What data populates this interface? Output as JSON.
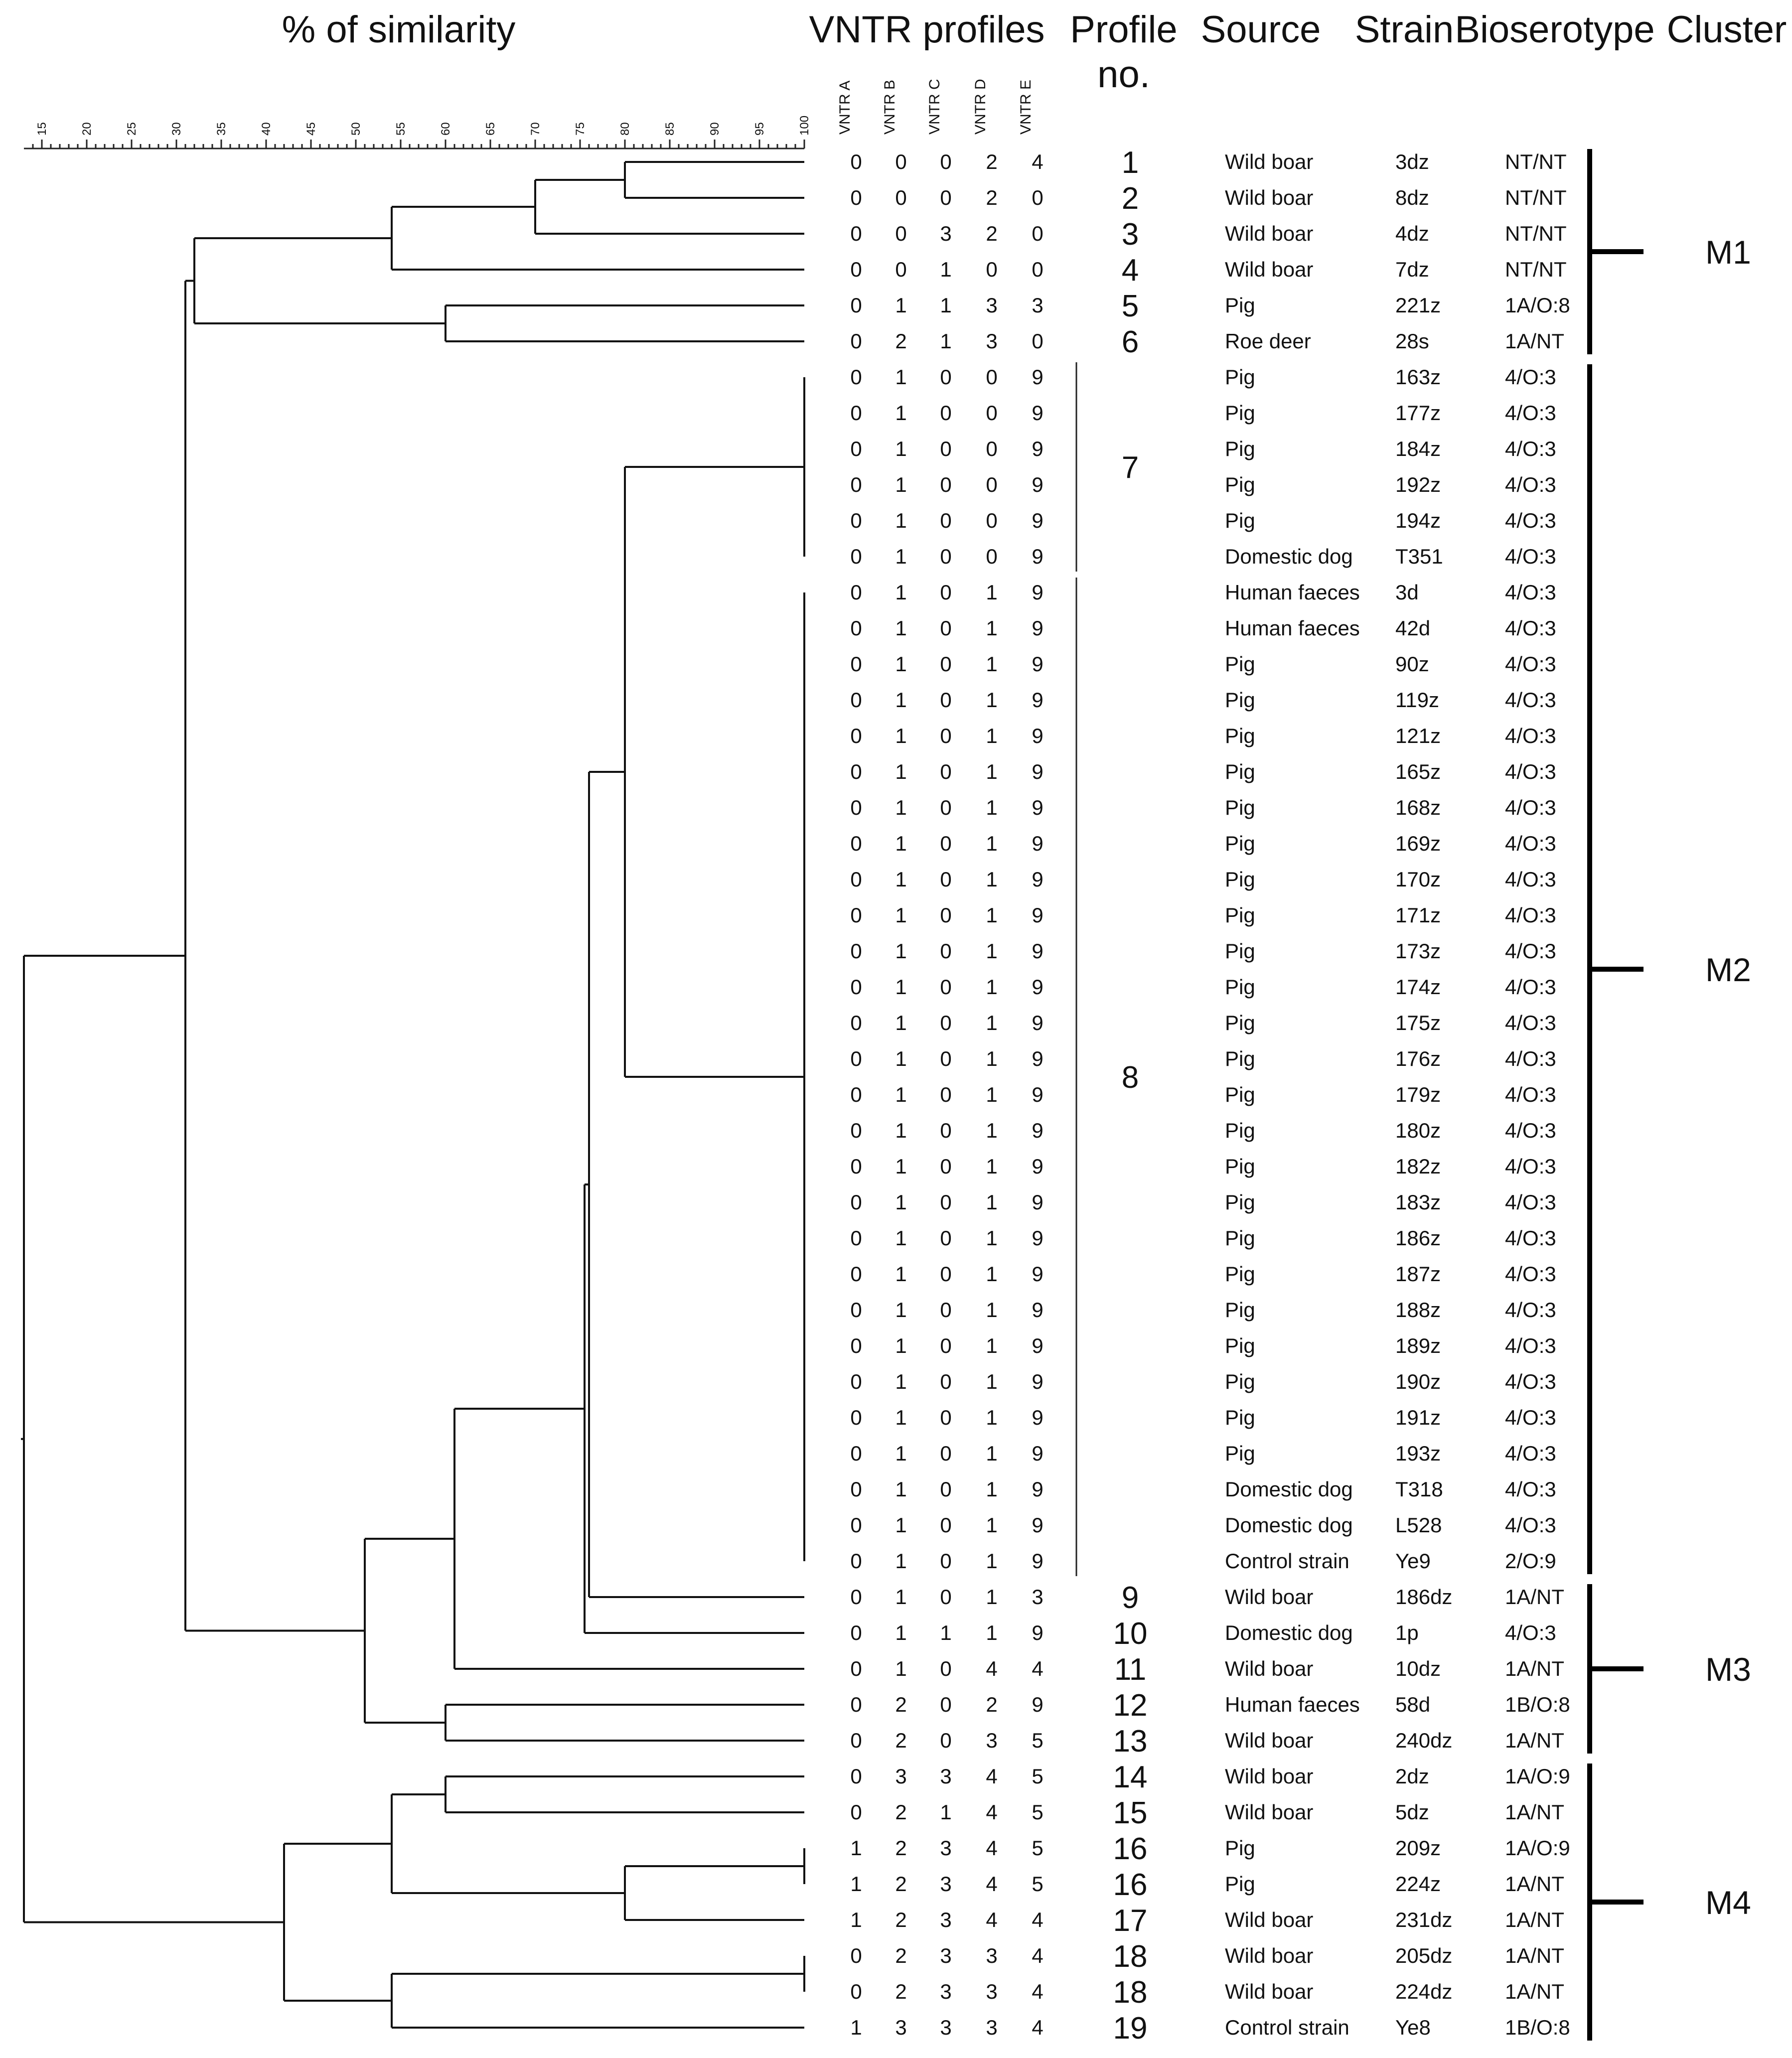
{
  "headers": {
    "similarity": "% of similarity",
    "vntr": "VNTR profiles",
    "profile": "Profile",
    "profile_no": "no.",
    "source": "Source",
    "strain": "Strain",
    "bioserotype": "Bioserotype",
    "cluster": "Cluster"
  },
  "vntr_columns": [
    "VNTR A",
    "VNTR B",
    "VNTR C",
    "VNTR D",
    "VNTR E"
  ],
  "scale_ticks": [
    "15",
    "20",
    "25",
    "30",
    "35",
    "40",
    "45",
    "50",
    "55",
    "60",
    "65",
    "70",
    "75",
    "80",
    "85",
    "90",
    "95",
    "100"
  ],
  "rows": [
    {
      "vntr": [
        "0",
        "0",
        "0",
        "2",
        "4"
      ],
      "source": "Wild boar",
      "strain": "3dz",
      "bioserotype": "NT/NT"
    },
    {
      "vntr": [
        "0",
        "0",
        "0",
        "2",
        "0"
      ],
      "source": "Wild boar",
      "strain": "8dz",
      "bioserotype": "NT/NT"
    },
    {
      "vntr": [
        "0",
        "0",
        "3",
        "2",
        "0"
      ],
      "source": "Wild boar",
      "strain": "4dz",
      "bioserotype": "NT/NT"
    },
    {
      "vntr": [
        "0",
        "0",
        "1",
        "0",
        "0"
      ],
      "source": "Wild boar",
      "strain": "7dz",
      "bioserotype": "NT/NT"
    },
    {
      "vntr": [
        "0",
        "1",
        "1",
        "3",
        "3"
      ],
      "source": "Pig",
      "strain": "221z",
      "bioserotype": "1A/O:8"
    },
    {
      "vntr": [
        "0",
        "2",
        "1",
        "3",
        "0"
      ],
      "source": "Roe deer",
      "strain": "28s",
      "bioserotype": "1A/NT"
    },
    {
      "vntr": [
        "0",
        "1",
        "0",
        "0",
        "9"
      ],
      "source": "Pig",
      "strain": "163z",
      "bioserotype": "4/O:3"
    },
    {
      "vntr": [
        "0",
        "1",
        "0",
        "0",
        "9"
      ],
      "source": "Pig",
      "strain": "177z",
      "bioserotype": "4/O:3"
    },
    {
      "vntr": [
        "0",
        "1",
        "0",
        "0",
        "9"
      ],
      "source": "Pig",
      "strain": "184z",
      "bioserotype": "4/O:3"
    },
    {
      "vntr": [
        "0",
        "1",
        "0",
        "0",
        "9"
      ],
      "source": "Pig",
      "strain": "192z",
      "bioserotype": "4/O:3"
    },
    {
      "vntr": [
        "0",
        "1",
        "0",
        "0",
        "9"
      ],
      "source": "Pig",
      "strain": "194z",
      "bioserotype": "4/O:3"
    },
    {
      "vntr": [
        "0",
        "1",
        "0",
        "0",
        "9"
      ],
      "source": "Domestic dog",
      "strain": "T351",
      "bioserotype": "4/O:3"
    },
    {
      "vntr": [
        "0",
        "1",
        "0",
        "1",
        "9"
      ],
      "source": "Human faeces",
      "strain": "3d",
      "bioserotype": "4/O:3"
    },
    {
      "vntr": [
        "0",
        "1",
        "0",
        "1",
        "9"
      ],
      "source": "Human faeces",
      "strain": "42d",
      "bioserotype": "4/O:3"
    },
    {
      "vntr": [
        "0",
        "1",
        "0",
        "1",
        "9"
      ],
      "source": "Pig",
      "strain": "90z",
      "bioserotype": "4/O:3"
    },
    {
      "vntr": [
        "0",
        "1",
        "0",
        "1",
        "9"
      ],
      "source": "Pig",
      "strain": "119z",
      "bioserotype": "4/O:3"
    },
    {
      "vntr": [
        "0",
        "1",
        "0",
        "1",
        "9"
      ],
      "source": "Pig",
      "strain": "121z",
      "bioserotype": "4/O:3"
    },
    {
      "vntr": [
        "0",
        "1",
        "0",
        "1",
        "9"
      ],
      "source": "Pig",
      "strain": "165z",
      "bioserotype": "4/O:3"
    },
    {
      "vntr": [
        "0",
        "1",
        "0",
        "1",
        "9"
      ],
      "source": "Pig",
      "strain": "168z",
      "bioserotype": "4/O:3"
    },
    {
      "vntr": [
        "0",
        "1",
        "0",
        "1",
        "9"
      ],
      "source": "Pig",
      "strain": "169z",
      "bioserotype": "4/O:3"
    },
    {
      "vntr": [
        "0",
        "1",
        "0",
        "1",
        "9"
      ],
      "source": "Pig",
      "strain": "170z",
      "bioserotype": "4/O:3"
    },
    {
      "vntr": [
        "0",
        "1",
        "0",
        "1",
        "9"
      ],
      "source": "Pig",
      "strain": "171z",
      "bioserotype": "4/O:3"
    },
    {
      "vntr": [
        "0",
        "1",
        "0",
        "1",
        "9"
      ],
      "source": "Pig",
      "strain": "173z",
      "bioserotype": "4/O:3"
    },
    {
      "vntr": [
        "0",
        "1",
        "0",
        "1",
        "9"
      ],
      "source": "Pig",
      "strain": "174z",
      "bioserotype": "4/O:3"
    },
    {
      "vntr": [
        "0",
        "1",
        "0",
        "1",
        "9"
      ],
      "source": "Pig",
      "strain": "175z",
      "bioserotype": "4/O:3"
    },
    {
      "vntr": [
        "0",
        "1",
        "0",
        "1",
        "9"
      ],
      "source": "Pig",
      "strain": "176z",
      "bioserotype": "4/O:3"
    },
    {
      "vntr": [
        "0",
        "1",
        "0",
        "1",
        "9"
      ],
      "source": "Pig",
      "strain": "179z",
      "bioserotype": "4/O:3"
    },
    {
      "vntr": [
        "0",
        "1",
        "0",
        "1",
        "9"
      ],
      "source": "Pig",
      "strain": "180z",
      "bioserotype": "4/O:3"
    },
    {
      "vntr": [
        "0",
        "1",
        "0",
        "1",
        "9"
      ],
      "source": "Pig",
      "strain": "182z",
      "bioserotype": "4/O:3"
    },
    {
      "vntr": [
        "0",
        "1",
        "0",
        "1",
        "9"
      ],
      "source": "Pig",
      "strain": "183z",
      "bioserotype": "4/O:3"
    },
    {
      "vntr": [
        "0",
        "1",
        "0",
        "1",
        "9"
      ],
      "source": "Pig",
      "strain": "186z",
      "bioserotype": "4/O:3"
    },
    {
      "vntr": [
        "0",
        "1",
        "0",
        "1",
        "9"
      ],
      "source": "Pig",
      "strain": "187z",
      "bioserotype": "4/O:3"
    },
    {
      "vntr": [
        "0",
        "1",
        "0",
        "1",
        "9"
      ],
      "source": "Pig",
      "strain": "188z",
      "bioserotype": "4/O:3"
    },
    {
      "vntr": [
        "0",
        "1",
        "0",
        "1",
        "9"
      ],
      "source": "Pig",
      "strain": "189z",
      "bioserotype": "4/O:3"
    },
    {
      "vntr": [
        "0",
        "1",
        "0",
        "1",
        "9"
      ],
      "source": "Pig",
      "strain": "190z",
      "bioserotype": "4/O:3"
    },
    {
      "vntr": [
        "0",
        "1",
        "0",
        "1",
        "9"
      ],
      "source": "Pig",
      "strain": "191z",
      "bioserotype": "4/O:3"
    },
    {
      "vntr": [
        "0",
        "1",
        "0",
        "1",
        "9"
      ],
      "source": "Pig",
      "strain": "193z",
      "bioserotype": "4/O:3"
    },
    {
      "vntr": [
        "0",
        "1",
        "0",
        "1",
        "9"
      ],
      "source": "Domestic dog",
      "strain": "T318",
      "bioserotype": "4/O:3"
    },
    {
      "vntr": [
        "0",
        "1",
        "0",
        "1",
        "9"
      ],
      "source": "Domestic dog",
      "strain": "L528",
      "bioserotype": "4/O:3"
    },
    {
      "vntr": [
        "0",
        "1",
        "0",
        "1",
        "9"
      ],
      "source": "Control strain",
      "strain": "Ye9",
      "bioserotype": "2/O:9"
    },
    {
      "vntr": [
        "0",
        "1",
        "0",
        "1",
        "3"
      ],
      "source": "Wild boar",
      "strain": "186dz",
      "bioserotype": "1A/NT"
    },
    {
      "vntr": [
        "0",
        "1",
        "1",
        "1",
        "9"
      ],
      "source": "Domestic dog",
      "strain": "1p",
      "bioserotype": "4/O:3"
    },
    {
      "vntr": [
        "0",
        "1",
        "0",
        "4",
        "4"
      ],
      "source": "Wild boar",
      "strain": "10dz",
      "bioserotype": "1A/NT"
    },
    {
      "vntr": [
        "0",
        "2",
        "0",
        "2",
        "9"
      ],
      "source": "Human faeces",
      "strain": "58d",
      "bioserotype": "1B/O:8"
    },
    {
      "vntr": [
        "0",
        "2",
        "0",
        "3",
        "5"
      ],
      "source": "Wild boar",
      "strain": "240dz",
      "bioserotype": "1A/NT"
    },
    {
      "vntr": [
        "0",
        "3",
        "3",
        "4",
        "5"
      ],
      "source": "Wild boar",
      "strain": "2dz",
      "bioserotype": "1A/O:9"
    },
    {
      "vntr": [
        "0",
        "2",
        "1",
        "4",
        "5"
      ],
      "source": "Wild boar",
      "strain": "5dz",
      "bioserotype": "1A/NT"
    },
    {
      "vntr": [
        "1",
        "2",
        "3",
        "4",
        "5"
      ],
      "source": "Pig",
      "strain": "209z",
      "bioserotype": "1A/O:9"
    },
    {
      "vntr": [
        "1",
        "2",
        "3",
        "4",
        "5"
      ],
      "source": "Pig",
      "strain": "224z",
      "bioserotype": "1A/NT"
    },
    {
      "vntr": [
        "1",
        "2",
        "3",
        "4",
        "4"
      ],
      "source": "Wild boar",
      "strain": "231dz",
      "bioserotype": "1A/NT"
    },
    {
      "vntr": [
        "0",
        "2",
        "3",
        "3",
        "4"
      ],
      "source": "Wild boar",
      "strain": "205dz",
      "bioserotype": "1A/NT"
    },
    {
      "vntr": [
        "0",
        "2",
        "3",
        "3",
        "4"
      ],
      "source": "Wild boar",
      "strain": "224dz",
      "bioserotype": "1A/NT"
    },
    {
      "vntr": [
        "1",
        "3",
        "3",
        "3",
        "4"
      ],
      "source": "Control strain",
      "strain": "Ye8",
      "bioserotype": "1B/O:8"
    }
  ],
  "profiles": [
    {
      "no": "1",
      "first": 0,
      "last": 0
    },
    {
      "no": "2",
      "first": 1,
      "last": 1
    },
    {
      "no": "3",
      "first": 2,
      "last": 2
    },
    {
      "no": "4",
      "first": 3,
      "last": 3
    },
    {
      "no": "5",
      "first": 4,
      "last": 4
    },
    {
      "no": "6",
      "first": 5,
      "last": 5
    },
    {
      "no": "7",
      "first": 6,
      "last": 11
    },
    {
      "no": "8",
      "first": 12,
      "last": 39
    },
    {
      "no": "9",
      "first": 40,
      "last": 40
    },
    {
      "no": "10",
      "first": 41,
      "last": 41
    },
    {
      "no": "11",
      "first": 42,
      "last": 42
    },
    {
      "no": "12",
      "first": 43,
      "last": 43
    },
    {
      "no": "13",
      "first": 44,
      "last": 44
    },
    {
      "no": "14",
      "first": 45,
      "last": 45
    },
    {
      "no": "15",
      "first": 46,
      "last": 46
    },
    {
      "no": "16",
      "first": 47,
      "last": 47
    },
    {
      "no": "16",
      "first": 48,
      "last": 48
    },
    {
      "no": "17",
      "first": 49,
      "last": 49
    },
    {
      "no": "18",
      "first": 50,
      "last": 50
    },
    {
      "no": "18",
      "first": 51,
      "last": 51
    },
    {
      "no": "19",
      "first": 52,
      "last": 52
    }
  ],
  "clusters": [
    {
      "label": "M1",
      "first": 0,
      "last": 5
    },
    {
      "label": "M2",
      "first": 6,
      "last": 39
    },
    {
      "label": "M3",
      "first": 40,
      "last": 44
    },
    {
      "label": "M4",
      "first": 45,
      "last": 52
    }
  ],
  "dendrogram": {
    "axis_min": 13,
    "axis_max": 100,
    "nodes": [
      {
        "id": "n01",
        "sim": 80,
        "children": [
          "L0",
          "L1"
        ]
      },
      {
        "id": "n02",
        "sim": 70,
        "children": [
          "n01",
          "L2"
        ]
      },
      {
        "id": "n03",
        "sim": 54,
        "children": [
          "n02",
          "L3"
        ]
      },
      {
        "id": "n04",
        "sim": 60,
        "children": [
          "L4",
          "L5"
        ]
      },
      {
        "id": "n05",
        "sim": 32,
        "children": [
          "n03",
          "n04"
        ]
      },
      {
        "id": "n06",
        "sim": 100,
        "children": [
          "L6",
          "L7",
          "L8",
          "L9",
          "L10",
          "L11"
        ]
      },
      {
        "id": "n07",
        "sim": 100,
        "children": [
          "L12",
          "L13",
          "L14",
          "L15",
          "L16",
          "L17",
          "L18",
          "L19",
          "L20",
          "L21",
          "L22",
          "L23",
          "L24",
          "L25",
          "L26",
          "L27",
          "L28",
          "L29",
          "L30",
          "L31",
          "L32",
          "L33",
          "L34",
          "L35",
          "L36",
          "L37",
          "L38",
          "L39"
        ]
      },
      {
        "id": "n08",
        "sim": 80,
        "children": [
          "n06",
          "n07"
        ]
      },
      {
        "id": "n09",
        "sim": 76,
        "children": [
          "n08",
          "L40"
        ]
      },
      {
        "id": "n10",
        "sim": 75.5,
        "children": [
          "n09",
          "L41"
        ]
      },
      {
        "id": "n11",
        "sim": 61,
        "children": [
          "n10",
          "L42"
        ]
      },
      {
        "id": "n12",
        "sim": 60,
        "children": [
          "L43",
          "L44"
        ]
      },
      {
        "id": "n13",
        "sim": 51,
        "children": [
          "n11",
          "n12"
        ]
      },
      {
        "id": "n14",
        "sim": 31,
        "children": [
          "n05",
          "n13"
        ]
      },
      {
        "id": "n15",
        "sim": 60,
        "children": [
          "L45",
          "L46"
        ]
      },
      {
        "id": "n16",
        "sim": 100,
        "children": [
          "L47",
          "L48"
        ]
      },
      {
        "id": "n17",
        "sim": 80,
        "children": [
          "n16",
          "L49"
        ]
      },
      {
        "id": "n18",
        "sim": 54,
        "children": [
          "n15",
          "n17"
        ]
      },
      {
        "id": "n19",
        "sim": 100,
        "children": [
          "L50",
          "L51"
        ]
      },
      {
        "id": "n20",
        "sim": 54,
        "children": [
          "n19",
          "L52"
        ]
      },
      {
        "id": "n21",
        "sim": 42,
        "children": [
          "n18",
          "n20"
        ]
      },
      {
        "id": "n22",
        "sim": 13,
        "children": [
          "n14",
          "n21"
        ]
      }
    ]
  }
}
